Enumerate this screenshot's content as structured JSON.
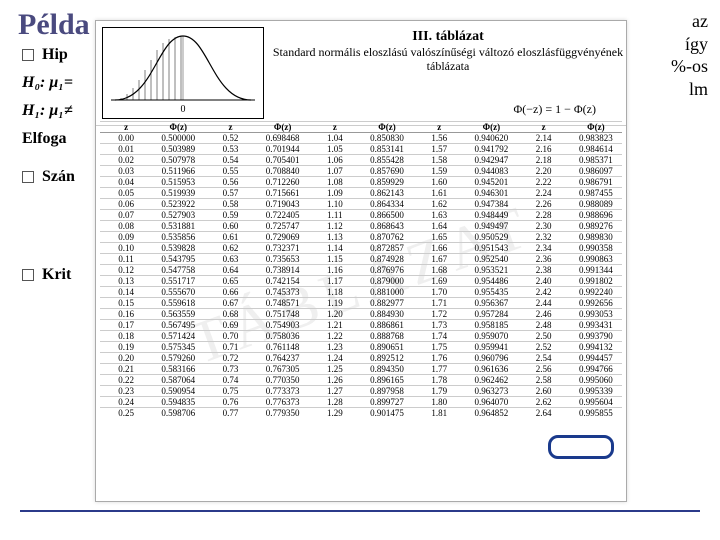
{
  "title": "Példa",
  "right_fragments": {
    "l1": "az",
    "l2": "így",
    "l3": "%-os",
    "l4": "lm"
  },
  "left": {
    "r1": "Hip",
    "h0": "H₀:",
    "mu0": "μ₁=",
    "h1": "H₁:",
    "mu1": "μ₁≠",
    "r4": "Elfoga",
    "r5": "Szán",
    "r6": "Krit"
  },
  "popup": {
    "main_title": "III. táblázat",
    "subtitle": "Standard normális eloszlású valószínűségi változó eloszlásfüggvényének táblázata",
    "formula": "Φ(−z) = 1 − Φ(z)",
    "bell": {
      "stroke": "#000000",
      "fill_hatch": "#000000",
      "axis_label": "0"
    },
    "columns": [
      "z",
      "Φ(z)",
      "z",
      "Φ(z)",
      "z",
      "Φ(z)",
      "z",
      "Φ(z)",
      "z",
      "Φ(z)"
    ],
    "rows": [
      [
        "0.00",
        "0.500000",
        "0.52",
        "0.698468",
        "1.04",
        "0.850830",
        "1.56",
        "0.940620",
        "2.14",
        "0.983823"
      ],
      [
        "0.01",
        "0.503989",
        "0.53",
        "0.701944",
        "1.05",
        "0.853141",
        "1.57",
        "0.941792",
        "2.16",
        "0.984614"
      ],
      [
        "0.02",
        "0.507978",
        "0.54",
        "0.705401",
        "1.06",
        "0.855428",
        "1.58",
        "0.942947",
        "2.18",
        "0.985371"
      ],
      [
        "0.03",
        "0.511966",
        "0.55",
        "0.708840",
        "1.07",
        "0.857690",
        "1.59",
        "0.944083",
        "2.20",
        "0.986097"
      ],
      [
        "0.04",
        "0.515953",
        "0.56",
        "0.712260",
        "1.08",
        "0.859929",
        "1.60",
        "0.945201",
        "2.22",
        "0.986791"
      ],
      [
        "0.05",
        "0.519939",
        "0.57",
        "0.715661",
        "1.09",
        "0.862143",
        "1.61",
        "0.946301",
        "2.24",
        "0.987455"
      ],
      [
        "0.06",
        "0.523922",
        "0.58",
        "0.719043",
        "1.10",
        "0.864334",
        "1.62",
        "0.947384",
        "2.26",
        "0.988089"
      ],
      [
        "0.07",
        "0.527903",
        "0.59",
        "0.722405",
        "1.11",
        "0.866500",
        "1.63",
        "0.948449",
        "2.28",
        "0.988696"
      ],
      [
        "0.08",
        "0.531881",
        "0.60",
        "0.725747",
        "1.12",
        "0.868643",
        "1.64",
        "0.949497",
        "2.30",
        "0.989276"
      ],
      [
        "0.09",
        "0.535856",
        "0.61",
        "0.729069",
        "1.13",
        "0.870762",
        "1.65",
        "0.950529",
        "2.32",
        "0.989830"
      ],
      [
        "0.10",
        "0.539828",
        "0.62",
        "0.732371",
        "1.14",
        "0.872857",
        "1.66",
        "0.951543",
        "2.34",
        "0.990358"
      ],
      [
        "0.11",
        "0.543795",
        "0.63",
        "0.735653",
        "1.15",
        "0.874928",
        "1.67",
        "0.952540",
        "2.36",
        "0.990863"
      ],
      [
        "0.12",
        "0.547758",
        "0.64",
        "0.738914",
        "1.16",
        "0.876976",
        "1.68",
        "0.953521",
        "2.38",
        "0.991344"
      ],
      [
        "0.13",
        "0.551717",
        "0.65",
        "0.742154",
        "1.17",
        "0.879000",
        "1.69",
        "0.954486",
        "2.40",
        "0.991802"
      ],
      [
        "0.14",
        "0.555670",
        "0.66",
        "0.745373",
        "1.18",
        "0.881000",
        "1.70",
        "0.955435",
        "2.42",
        "0.992240"
      ],
      [
        "0.15",
        "0.559618",
        "0.67",
        "0.748571",
        "1.19",
        "0.882977",
        "1.71",
        "0.956367",
        "2.44",
        "0.992656"
      ],
      [
        "0.16",
        "0.563559",
        "0.68",
        "0.751748",
        "1.20",
        "0.884930",
        "1.72",
        "0.957284",
        "2.46",
        "0.993053"
      ],
      [
        "0.17",
        "0.567495",
        "0.69",
        "0.754903",
        "1.21",
        "0.886861",
        "1.73",
        "0.958185",
        "2.48",
        "0.993431"
      ],
      [
        "0.18",
        "0.571424",
        "0.70",
        "0.758036",
        "1.22",
        "0.888768",
        "1.74",
        "0.959070",
        "2.50",
        "0.993790"
      ],
      [
        "0.19",
        "0.575345",
        "0.71",
        "0.761148",
        "1.23",
        "0.890651",
        "1.75",
        "0.959941",
        "2.52",
        "0.994132"
      ],
      [
        "0.20",
        "0.579260",
        "0.72",
        "0.764237",
        "1.24",
        "0.892512",
        "1.76",
        "0.960796",
        "2.54",
        "0.994457"
      ],
      [
        "0.21",
        "0.583166",
        "0.73",
        "0.767305",
        "1.25",
        "0.894350",
        "1.77",
        "0.961636",
        "2.56",
        "0.994766"
      ],
      [
        "0.22",
        "0.587064",
        "0.74",
        "0.770350",
        "1.26",
        "0.896165",
        "1.78",
        "0.962462",
        "2.58",
        "0.995060"
      ],
      [
        "0.23",
        "0.590954",
        "0.75",
        "0.773373",
        "1.27",
        "0.897958",
        "1.79",
        "0.963273",
        "2.60",
        "0.995339"
      ],
      [
        "0.24",
        "0.594835",
        "0.76",
        "0.776373",
        "1.28",
        "0.899727",
        "1.80",
        "0.964070",
        "2.62",
        "0.995604"
      ],
      [
        "0.25",
        "0.598706",
        "0.77",
        "0.779350",
        "1.29",
        "0.901475",
        "1.81",
        "0.964852",
        "2.64",
        "0.995855"
      ]
    ]
  },
  "style": {
    "title_color": "#4A4A7F",
    "hr_color": "#2b3a8a",
    "oval_color": "#1a3a8c",
    "bg": "#ffffff"
  }
}
